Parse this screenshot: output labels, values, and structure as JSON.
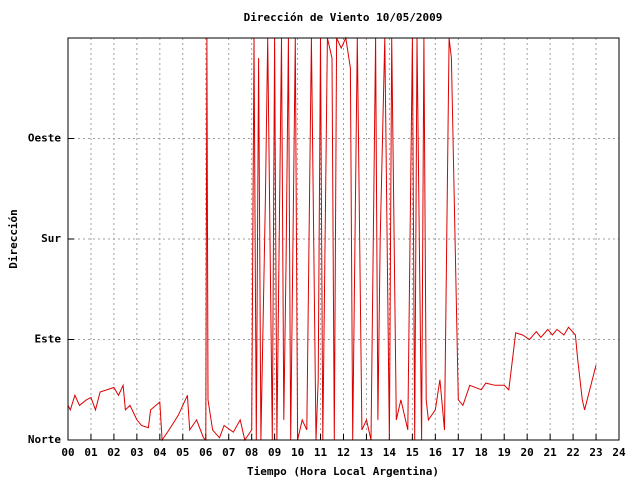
{
  "chart_data": {
    "type": "line",
    "title": "Dirección de Viento 10/05/2009",
    "x_label": "Tiempo (Hora Local Argentina)",
    "y_label": "Dirección",
    "xlim": [
      0,
      24
    ],
    "ylim": [
      0,
      360
    ],
    "xticks": [
      {
        "value": 0,
        "label": "00"
      },
      {
        "value": 1,
        "label": "01"
      },
      {
        "value": 2,
        "label": "02"
      },
      {
        "value": 3,
        "label": "03"
      },
      {
        "value": 4,
        "label": "04"
      },
      {
        "value": 5,
        "label": "05"
      },
      {
        "value": 6,
        "label": "06"
      },
      {
        "value": 7,
        "label": "07"
      },
      {
        "value": 8,
        "label": "08"
      },
      {
        "value": 9,
        "label": "09"
      },
      10,
      11,
      12,
      13,
      14,
      15,
      16,
      17,
      18,
      19,
      20,
      21,
      22,
      23,
      24
    ],
    "yticks": [
      {
        "value": 0,
        "label": "Norte"
      },
      {
        "value": 90,
        "label": "Este"
      },
      {
        "value": 180,
        "label": "Sur"
      },
      {
        "value": 270,
        "label": "Oeste"
      }
    ],
    "grid": true,
    "series": [
      {
        "color": "#dd0000",
        "x": [
          0,
          0.1,
          0.3,
          0.5,
          0.8,
          1.0,
          1.2,
          1.4,
          2.0,
          2.2,
          2.4,
          2.5,
          2.7,
          3.0,
          3.2,
          3.5,
          3.6,
          4.0,
          4.1,
          4.4,
          4.8,
          5.2,
          5.3,
          5.6,
          5.9,
          6.0,
          6.05,
          6.1,
          6.3,
          6.6,
          6.8,
          7.2,
          7.5,
          7.7,
          8.0,
          8.1,
          8.2,
          8.3,
          8.4,
          8.6,
          8.7,
          8.9,
          9.0,
          9.1,
          9.3,
          9.4,
          9.5,
          9.6,
          9.7,
          9.9,
          10.0,
          10.2,
          10.4,
          10.6,
          10.8,
          10.9,
          11.0,
          11.1,
          11.3,
          11.5,
          11.6,
          11.7,
          11.9,
          12.1,
          12.3,
          12.4,
          12.6,
          12.8,
          13.0,
          13.2,
          13.4,
          13.5,
          13.6,
          13.8,
          14.0,
          14.1,
          14.3,
          14.5,
          14.8,
          15.0,
          15.1,
          15.2,
          15.4,
          15.5,
          15.6,
          15.7,
          16.0,
          16.2,
          16.4,
          16.6,
          16.7,
          17.0,
          17.2,
          17.5,
          18.0,
          18.2,
          18.6,
          19.0,
          19.2,
          19.5,
          19.8,
          20.1,
          20.4,
          20.6,
          20.9,
          21.1,
          21.3,
          21.6,
          21.8,
          22.1,
          22.2,
          22.4,
          22.5,
          23.0
        ],
        "values": [
          31,
          27,
          40,
          31,
          36,
          38,
          27,
          43,
          47,
          40,
          49,
          27,
          31,
          18,
          13,
          11,
          27,
          34,
          0,
          9,
          22,
          40,
          9,
          18,
          2,
          0,
          360,
          36,
          9,
          2,
          13,
          7,
          18,
          0,
          9,
          360,
          0,
          342,
          0,
          216,
          360,
          0,
          360,
          0,
          360,
          18,
          162,
          360,
          0,
          360,
          0,
          18,
          9,
          360,
          0,
          54,
          360,
          0,
          360,
          342,
          0,
          360,
          351,
          360,
          333,
          0,
          360,
          9,
          18,
          0,
          360,
          18,
          180,
          360,
          0,
          360,
          18,
          36,
          9,
          360,
          0,
          360,
          0,
          360,
          36,
          18,
          27,
          54,
          9,
          360,
          342,
          36,
          31,
          49,
          45,
          51,
          49,
          49,
          45,
          96,
          94,
          90,
          97,
          92,
          99,
          94,
          99,
          94,
          101,
          94,
          72,
          36,
          27,
          67
        ]
      }
    ]
  }
}
